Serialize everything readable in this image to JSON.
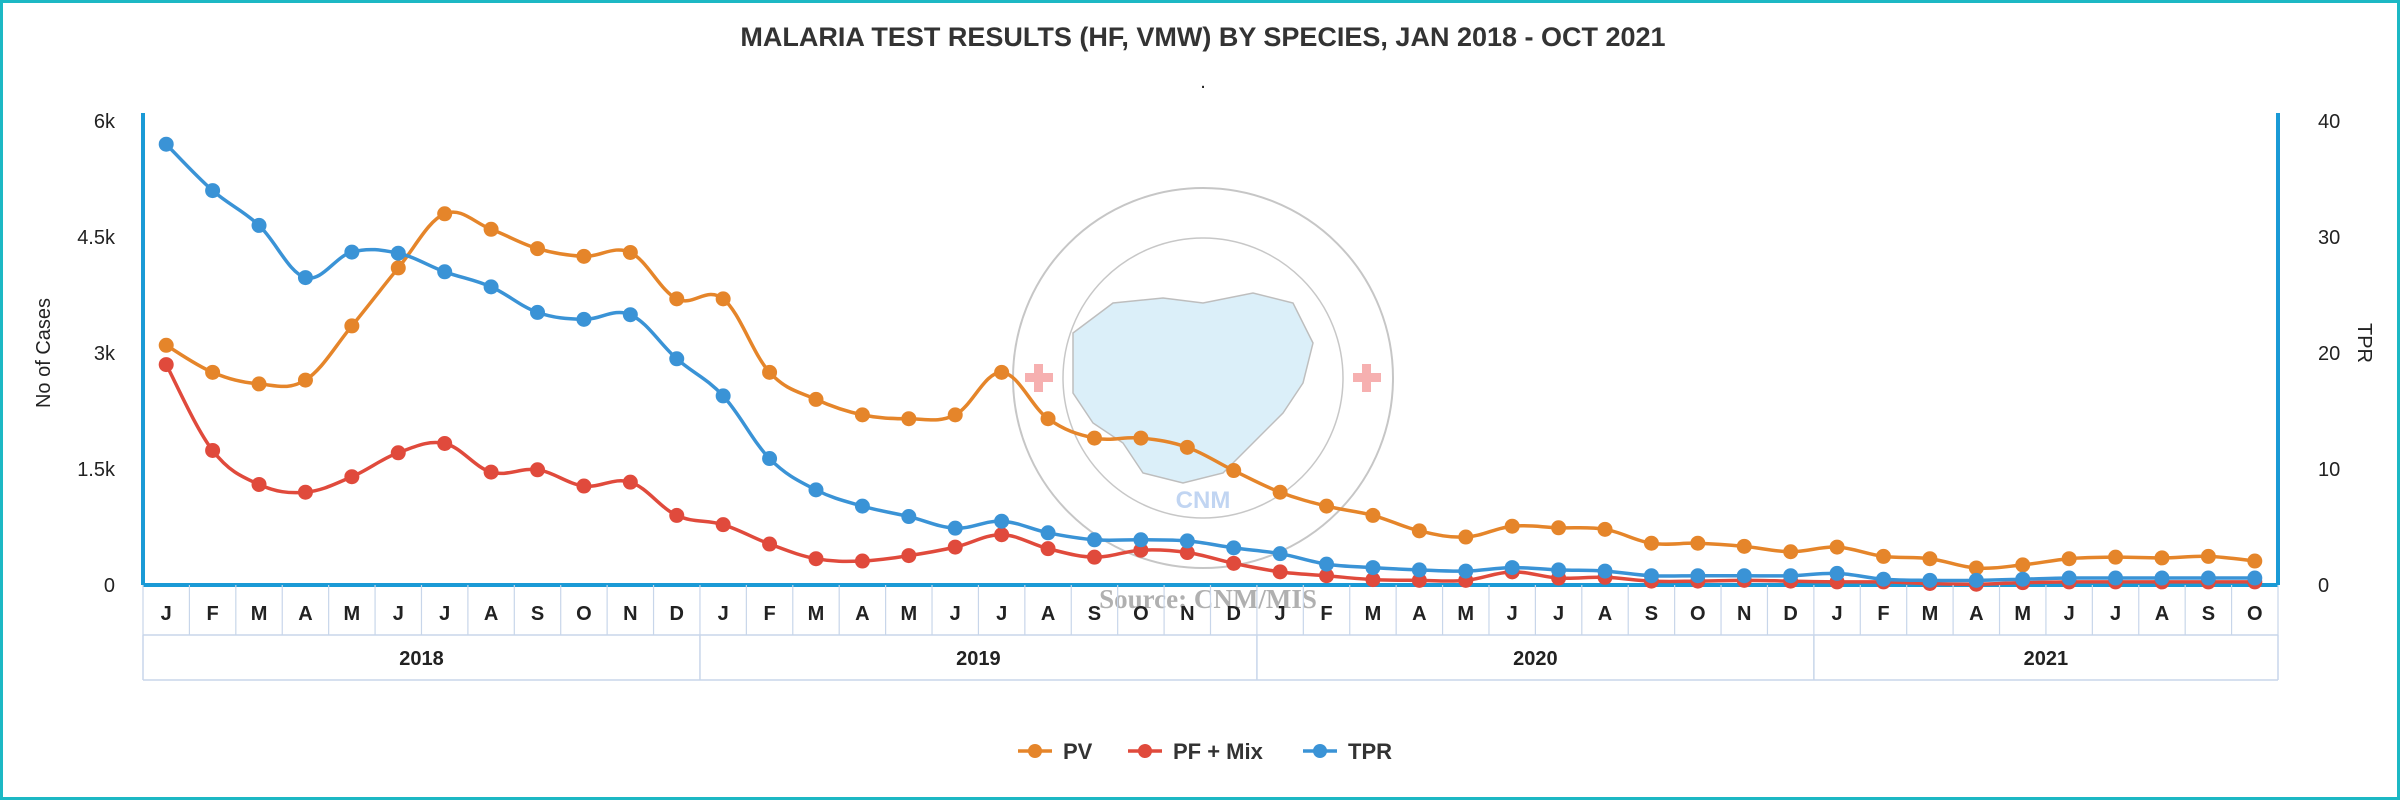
{
  "title": "MALARIA TEST RESULTS (HF, VMW) BY SPECIES, JAN 2018 - OCT 2021",
  "subtitle": ".",
  "watermark": {
    "logo_text": "CNM",
    "source_text": "Source: CNM/MIS"
  },
  "colors": {
    "frame": "#1cb8c4",
    "axis": "#1a9ad6",
    "PV": "#e5852a",
    "PF + Mix": "#e04a3c",
    "TPR": "#3a93d6"
  },
  "chart_data": {
    "type": "line",
    "title": "MALARIA TEST RESULTS (HF, VMW) BY SPECIES, JAN 2018 - OCT 2021",
    "ylabel": "No of Cases",
    "y2label": "TPR",
    "ylim": [
      0,
      6000
    ],
    "y2lim": [
      0,
      40
    ],
    "yticks": [
      "0",
      "1.5k",
      "3k",
      "4.5k",
      "6k"
    ],
    "y2ticks": [
      "0",
      "10",
      "20",
      "30",
      "40"
    ],
    "legend_position": "bottom",
    "grid": false,
    "months": [
      "J",
      "F",
      "M",
      "A",
      "M",
      "J",
      "J",
      "A",
      "S",
      "O",
      "N",
      "D",
      "J",
      "F",
      "M",
      "A",
      "M",
      "J",
      "J",
      "A",
      "S",
      "O",
      "N",
      "D",
      "J",
      "F",
      "M",
      "A",
      "M",
      "J",
      "J",
      "A",
      "S",
      "O",
      "N",
      "D",
      "J",
      "F",
      "M",
      "A",
      "M",
      "J",
      "J",
      "A",
      "S",
      "O"
    ],
    "years": [
      {
        "label": "2018",
        "count": 12
      },
      {
        "label": "2019",
        "count": 12
      },
      {
        "label": "2020",
        "count": 12
      },
      {
        "label": "2021",
        "count": 10
      }
    ],
    "series": [
      {
        "name": "PV",
        "axis": "left",
        "values": [
          3100,
          2750,
          2600,
          2650,
          3350,
          4100,
          4800,
          4600,
          4350,
          4250,
          4300,
          3700,
          3700,
          2750,
          2400,
          2200,
          2150,
          2200,
          2750,
          2150,
          1900,
          1900,
          1780,
          1480,
          1200,
          1020,
          900,
          700,
          620,
          760,
          740,
          720,
          540,
          540,
          500,
          430,
          490,
          370,
          340,
          220,
          260,
          340,
          360,
          350,
          370,
          310
        ]
      },
      {
        "name": "PF + Mix",
        "axis": "left",
        "values": [
          2850,
          1740,
          1300,
          1200,
          1400,
          1710,
          1830,
          1460,
          1490,
          1280,
          1330,
          900,
          780,
          530,
          340,
          310,
          380,
          490,
          650,
          470,
          360,
          450,
          420,
          280,
          170,
          120,
          70,
          60,
          60,
          170,
          90,
          100,
          50,
          50,
          60,
          50,
          40,
          40,
          20,
          10,
          30,
          40,
          40,
          40,
          40,
          40
        ]
      },
      {
        "name": "TPR",
        "axis": "right",
        "values": [
          38,
          34,
          31,
          26.5,
          28.7,
          28.6,
          27,
          25.7,
          23.5,
          22.9,
          23.3,
          19.5,
          16.3,
          10.9,
          8.2,
          6.8,
          5.9,
          4.9,
          5.5,
          4.5,
          3.9,
          3.9,
          3.8,
          3.2,
          2.7,
          1.8,
          1.5,
          1.3,
          1.2,
          1.5,
          1.3,
          1.2,
          0.8,
          0.8,
          0.8,
          0.8,
          1.0,
          0.5,
          0.4,
          0.4,
          0.5,
          0.6,
          0.6,
          0.6,
          0.6,
          0.6
        ]
      }
    ]
  }
}
